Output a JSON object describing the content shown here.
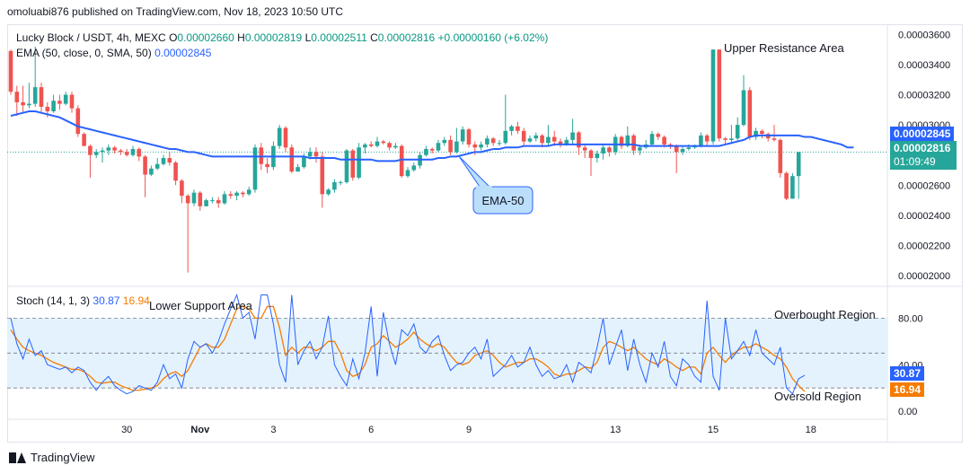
{
  "header": {
    "published": "omoluabi876 published on TradingView.com, Nov 18, 2023 10:50 UTC"
  },
  "legend": {
    "symbol": "Lucky Block / USDT, 4h, MEXC",
    "o_label": "O",
    "o": "0.00002660",
    "h_label": "H",
    "h": "0.00002819",
    "l_label": "L",
    "l": "0.00002511",
    "c_label": "C",
    "c": "0.00002816",
    "change": "+0.00000160 (+6.02%)",
    "ema_label": "EMA (50, close, 0, SMA, 50)",
    "ema_value": "0.00002845",
    "stoch_label": "Stoch (14, 1, 3)",
    "stoch_k": "30.87",
    "stoch_d": "16.94"
  },
  "annotations": {
    "upper": "Upper Resistance Area",
    "lower": "Lower Support Area",
    "ema_callout": "EMA-50",
    "overbought": "Overbought Region",
    "oversold": "Oversold Region"
  },
  "price_tags": {
    "ema": "0.00002845",
    "close": "0.00002816",
    "countdown": "01:09:49",
    "stoch_k": "30.87",
    "stoch_d": "16.94"
  },
  "footer": {
    "brand": "TradingView"
  },
  "colors": {
    "up": "#26a69a",
    "down": "#ef5350",
    "ema": "#2962ff",
    "k": "#2962ff",
    "d": "#f57c00",
    "band": "#e3f2fd"
  },
  "chart_data": [
    {
      "type": "candlestick",
      "y_ticks": [
        "0.00003600",
        "0.00003400",
        "0.00003200",
        "0.00003000",
        "0.00002600",
        "0.00002400",
        "0.00002200",
        "0.00002000"
      ],
      "ylim": [
        1.97e-05,
        3.65e-05
      ],
      "x_ticks": [
        {
          "label": "30",
          "i": 19
        },
        {
          "label": "Nov",
          "i": 31
        },
        {
          "label": "3",
          "i": 43
        },
        {
          "label": "6",
          "i": 59
        },
        {
          "label": "9",
          "i": 75
        },
        {
          "label": "13",
          "i": 99
        },
        {
          "label": "15",
          "i": 115
        },
        {
          "label": "18",
          "i": 131
        }
      ],
      "candles": [
        [
          34.9,
          32.2,
          35.0,
          32.0
        ],
        [
          32.2,
          31.5,
          32.6,
          30.6
        ],
        [
          31.5,
          31.3,
          32.6,
          30.8
        ],
        [
          31.3,
          31.4,
          32.8,
          31.1
        ],
        [
          31.4,
          32.5,
          35.2,
          31.2
        ],
        [
          32.5,
          31.2,
          32.8,
          30.8
        ],
        [
          31.2,
          30.9,
          31.5,
          30.5
        ],
        [
          30.9,
          31.6,
          32.0,
          30.8
        ],
        [
          31.6,
          31.4,
          32.0,
          31.0
        ],
        [
          31.4,
          32.0,
          32.2,
          31.3
        ],
        [
          32.0,
          31.1,
          32.2,
          30.8
        ],
        [
          31.1,
          29.4,
          31.3,
          29.2
        ],
        [
          29.4,
          28.6,
          29.5,
          28.6
        ],
        [
          28.6,
          28.0,
          28.7,
          26.5
        ],
        [
          28.0,
          28.2,
          28.4,
          27.8
        ],
        [
          28.2,
          28.3,
          28.5,
          27.5
        ],
        [
          28.3,
          28.5,
          28.7,
          28.0
        ],
        [
          28.5,
          28.3,
          28.6,
          28.1
        ],
        [
          28.3,
          28.2,
          28.4,
          28.0
        ],
        [
          28.2,
          28.0,
          28.4,
          27.9
        ],
        [
          28.0,
          28.4,
          28.6,
          27.9
        ],
        [
          28.4,
          27.9,
          28.5,
          27.6
        ],
        [
          27.9,
          26.7,
          28.0,
          25.2
        ],
        [
          26.7,
          27.1,
          27.3,
          26.6
        ],
        [
          27.1,
          27.4,
          27.8,
          27.0
        ],
        [
          27.4,
          27.8,
          28.0,
          27.3
        ],
        [
          27.8,
          27.5,
          28.2,
          27.3
        ],
        [
          27.5,
          26.3,
          27.6,
          26.0
        ],
        [
          26.3,
          25.3,
          26.4,
          24.8
        ],
        [
          25.3,
          24.8,
          25.4,
          20.2
        ],
        [
          24.8,
          25.5,
          25.7,
          24.6
        ],
        [
          25.5,
          24.6,
          25.6,
          24.3
        ],
        [
          24.6,
          25.0,
          25.1,
          24.6
        ],
        [
          25.0,
          25.0,
          25.2,
          24.8
        ],
        [
          25.0,
          24.8,
          25.2,
          24.5
        ],
        [
          24.8,
          25.4,
          25.6,
          24.7
        ],
        [
          25.4,
          25.3,
          25.6,
          25.1
        ],
        [
          25.3,
          25.5,
          25.6,
          25.0
        ],
        [
          25.5,
          25.4,
          25.6,
          25.2
        ],
        [
          25.4,
          25.7,
          25.9,
          25.3
        ],
        [
          25.7,
          28.5,
          28.7,
          25.5
        ],
        [
          28.5,
          27.4,
          28.8,
          27.0
        ],
        [
          27.4,
          27.2,
          27.8,
          26.8
        ],
        [
          27.2,
          28.6,
          28.9,
          27.0
        ],
        [
          28.6,
          29.8,
          30.0,
          28.4
        ],
        [
          29.8,
          28.5,
          29.9,
          28.2
        ],
        [
          28.5,
          26.9,
          28.7,
          26.8
        ],
        [
          26.9,
          27.2,
          27.4,
          26.9
        ],
        [
          27.2,
          27.9,
          28.1,
          27.1
        ],
        [
          27.9,
          28.2,
          28.5,
          27.7
        ],
        [
          28.2,
          27.9,
          28.5,
          27.5
        ],
        [
          27.9,
          25.4,
          28.2,
          24.5
        ],
        [
          25.4,
          25.7,
          25.8,
          25.3
        ],
        [
          25.7,
          26.2,
          26.4,
          25.5
        ],
        [
          26.2,
          26.2,
          26.3,
          26.0
        ],
        [
          26.2,
          28.3,
          28.4,
          26.1
        ],
        [
          28.3,
          26.5,
          28.4,
          26.3
        ],
        [
          26.5,
          28.5,
          28.8,
          26.4
        ],
        [
          28.5,
          28.7,
          28.8,
          28.1
        ],
        [
          28.7,
          28.6,
          28.9,
          28.5
        ],
        [
          28.6,
          28.9,
          29.2,
          28.5
        ],
        [
          28.9,
          28.8,
          29.0,
          28.7
        ],
        [
          28.8,
          28.5,
          28.9,
          28.3
        ],
        [
          28.5,
          28.6,
          28.8,
          28.4
        ],
        [
          28.6,
          26.6,
          28.7,
          26.5
        ],
        [
          26.6,
          27.0,
          27.2,
          26.5
        ],
        [
          27.0,
          27.3,
          27.5,
          26.9
        ],
        [
          27.3,
          28.0,
          28.2,
          27.1
        ],
        [
          28.0,
          28.4,
          28.6,
          27.9
        ],
        [
          28.4,
          28.3,
          28.5,
          28.1
        ],
        [
          28.3,
          28.8,
          29.0,
          28.2
        ],
        [
          28.8,
          29.0,
          29.2,
          28.6
        ],
        [
          29.0,
          28.2,
          29.3,
          28.0
        ],
        [
          28.2,
          28.9,
          29.8,
          28.1
        ],
        [
          28.9,
          29.7,
          29.9,
          28.7
        ],
        [
          29.7,
          28.7,
          29.8,
          28.5
        ],
        [
          28.7,
          28.5,
          28.9,
          28.0
        ],
        [
          28.5,
          28.7,
          28.9,
          28.3
        ],
        [
          28.7,
          29.1,
          29.3,
          28.5
        ],
        [
          29.1,
          28.8,
          29.2,
          28.6
        ],
        [
          28.8,
          28.8,
          29.0,
          28.6
        ],
        [
          28.8,
          29.6,
          32.0,
          28.7
        ],
        [
          29.6,
          29.9,
          30.0,
          29.3
        ],
        [
          29.9,
          29.6,
          30.2,
          29.4
        ],
        [
          29.6,
          28.9,
          29.8,
          28.6
        ],
        [
          28.9,
          29.1,
          29.3,
          28.8
        ],
        [
          29.1,
          29.3,
          29.5,
          28.9
        ],
        [
          29.3,
          28.8,
          29.4,
          28.5
        ],
        [
          28.8,
          29.2,
          30.0,
          28.6
        ],
        [
          29.2,
          28.9,
          29.6,
          28.6
        ],
        [
          28.9,
          28.7,
          29.1,
          28.5
        ],
        [
          28.7,
          29.0,
          29.2,
          28.6
        ],
        [
          29.0,
          29.5,
          30.4,
          28.7
        ],
        [
          29.5,
          28.5,
          29.6,
          28.0
        ],
        [
          28.5,
          28.3,
          28.7,
          27.8
        ],
        [
          28.3,
          27.8,
          28.4,
          26.6
        ],
        [
          27.8,
          28.1,
          28.3,
          27.5
        ],
        [
          28.1,
          28.5,
          28.7,
          27.7
        ],
        [
          28.5,
          28.2,
          28.6,
          27.9
        ],
        [
          28.2,
          29.2,
          29.4,
          28.0
        ],
        [
          29.2,
          28.6,
          29.3,
          28.4
        ],
        [
          28.6,
          29.3,
          29.9,
          28.5
        ],
        [
          29.3,
          28.3,
          29.4,
          28.0
        ],
        [
          28.3,
          28.5,
          28.7,
          28.0
        ],
        [
          28.5,
          28.7,
          29.0,
          28.4
        ],
        [
          28.7,
          29.4,
          29.6,
          28.6
        ],
        [
          29.4,
          29.2,
          29.5,
          29.0
        ],
        [
          29.2,
          28.7,
          29.3,
          28.5
        ],
        [
          28.7,
          28.6,
          28.8,
          28.4
        ],
        [
          28.6,
          28.2,
          28.7,
          26.8
        ],
        [
          28.2,
          28.4,
          28.6,
          28.0
        ],
        [
          28.4,
          28.5,
          28.7,
          28.3
        ],
        [
          28.5,
          28.6,
          28.7,
          28.4
        ],
        [
          28.6,
          29.3,
          29.5,
          28.5
        ],
        [
          29.3,
          28.9,
          29.4,
          28.6
        ],
        [
          28.9,
          35.0,
          35.0,
          28.7
        ],
        [
          35.0,
          29.1,
          35.0,
          28.9
        ],
        [
          29.1,
          29.0,
          29.2,
          28.7
        ],
        [
          29.0,
          29.1,
          30.0,
          28.8
        ],
        [
          29.1,
          30.0,
          30.5,
          28.9
        ],
        [
          30.0,
          32.3,
          33.3,
          29.9
        ],
        [
          32.3,
          29.2,
          32.5,
          29.0
        ],
        [
          29.2,
          29.6,
          29.8,
          29.0
        ],
        [
          29.6,
          29.4,
          29.7,
          29.1
        ],
        [
          29.4,
          29.1,
          29.5,
          28.9
        ],
        [
          29.1,
          29.0,
          30.0,
          28.9
        ],
        [
          29.0,
          26.8,
          29.1,
          26.5
        ],
        [
          26.8,
          25.1,
          26.9,
          25.0
        ],
        [
          25.1,
          26.6,
          26.8,
          25.9
        ],
        [
          26.6,
          28.2,
          28.2,
          25.1
        ]
      ],
      "ema": [
        30.6,
        30.7,
        30.8,
        30.9,
        30.9,
        30.8,
        30.7,
        30.6,
        30.5,
        30.3,
        30.1,
        29.9,
        29.8,
        29.7,
        29.6,
        29.5,
        29.4,
        29.3,
        29.2,
        29.1,
        29.0,
        28.9,
        28.8,
        28.7,
        28.6,
        28.5,
        28.4,
        28.4,
        28.3,
        28.2,
        28.2,
        28.1,
        28.0,
        27.9,
        27.9,
        27.9,
        27.9,
        27.9,
        27.9,
        27.9,
        27.9,
        27.9,
        27.9,
        27.9,
        27.9,
        27.9,
        27.9,
        27.9,
        27.9,
        27.8,
        27.8,
        27.8,
        27.8,
        27.8,
        27.7,
        27.7,
        27.7,
        27.7,
        27.7,
        27.7,
        27.6,
        27.6,
        27.6,
        27.6,
        27.7,
        27.7,
        27.7,
        27.7,
        27.7,
        27.7,
        27.8,
        27.8,
        27.9,
        27.9,
        28.0,
        28.1,
        28.2,
        28.2,
        28.3,
        28.4,
        28.4,
        28.5,
        28.5,
        28.5,
        28.6,
        28.6,
        28.6,
        28.6,
        28.6,
        28.7,
        28.7,
        28.7,
        28.7,
        28.7,
        28.7,
        28.7,
        28.7,
        28.7,
        28.7,
        28.7,
        28.7,
        28.7,
        28.7,
        28.6,
        28.6,
        28.6,
        28.6,
        28.6,
        28.6,
        28.6,
        28.6,
        28.6,
        28.6,
        28.6,
        28.6,
        28.6,
        28.6,
        28.7,
        28.8,
        28.9,
        29.0,
        29.2,
        29.3,
        29.3,
        29.3,
        29.3,
        29.3,
        29.3,
        29.3,
        29.3,
        29.2,
        29.2,
        29.1,
        29.0,
        28.9,
        28.8,
        28.7,
        28.5,
        28.5
      ]
    },
    {
      "type": "line",
      "series": [
        {
          "name": "Stoch %K",
          "values": [
            80,
            58,
            45,
            62,
            48,
            52,
            40,
            38,
            36,
            38,
            33,
            38,
            35,
            25,
            18,
            25,
            30,
            22,
            18,
            15,
            17,
            22,
            20,
            18,
            25,
            40,
            28,
            32,
            20,
            45,
            60,
            55,
            58,
            50,
            60,
            75,
            88,
            100,
            80,
            85,
            62,
            100,
            100,
            75,
            40,
            25,
            100,
            40,
            52,
            60,
            45,
            55,
            82,
            40,
            30,
            22,
            45,
            28,
            50,
            90,
            30,
            85,
            58,
            40,
            70,
            65,
            75,
            55,
            50,
            60,
            65,
            48,
            35,
            40,
            42,
            50,
            55,
            45,
            62,
            30,
            35,
            40,
            48,
            38,
            42,
            55,
            40,
            30,
            35,
            28,
            30,
            40,
            25,
            42,
            38,
            33,
            55,
            80,
            40,
            55,
            70,
            35,
            62,
            40,
            25,
            50,
            38,
            60,
            30,
            22,
            45,
            40,
            30,
            25,
            95,
            30,
            18,
            80,
            45,
            52,
            60,
            48,
            70,
            50,
            45,
            40,
            55,
            20,
            15,
            28,
            30.87
          ]
        },
        {
          "name": "Stoch %D",
          "values": [
            70,
            62,
            55,
            52,
            50,
            48,
            45,
            42,
            40,
            38,
            36,
            36,
            34,
            30,
            25,
            24,
            25,
            25,
            22,
            20,
            18,
            18,
            19,
            20,
            22,
            28,
            32,
            34,
            30,
            35,
            45,
            55,
            58,
            55,
            55,
            62,
            75,
            88,
            90,
            88,
            80,
            80,
            90,
            90,
            72,
            48,
            55,
            50,
            55,
            55,
            52,
            55,
            60,
            60,
            50,
            35,
            30,
            32,
            40,
            55,
            58,
            65,
            60,
            55,
            58,
            62,
            68,
            62,
            58,
            55,
            58,
            55,
            48,
            42,
            40,
            42,
            48,
            50,
            52,
            48,
            42,
            38,
            40,
            42,
            42,
            45,
            45,
            42,
            38,
            32,
            30,
            32,
            32,
            35,
            38,
            37,
            42,
            55,
            60,
            58,
            55,
            52,
            55,
            50,
            45,
            42,
            40,
            45,
            42,
            38,
            35,
            38,
            38,
            32,
            50,
            55,
            48,
            42,
            48,
            52,
            55,
            55,
            58,
            55,
            52,
            48,
            45,
            38,
            28,
            22,
            16.94
          ]
        }
      ],
      "y_ticks": [
        "80.00",
        "40.00",
        "0.00"
      ],
      "ylim": [
        -3,
        105
      ],
      "overbought": 80,
      "oversold": 20,
      "mid": 50
    }
  ]
}
